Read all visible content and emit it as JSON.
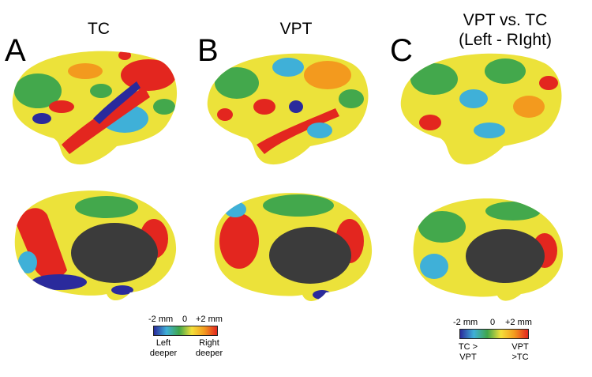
{
  "panels": [
    {
      "letter": "A",
      "title_lines": [
        "TC"
      ]
    },
    {
      "letter": "B",
      "title_lines": [
        "VPT"
      ]
    },
    {
      "letter": "C",
      "title_lines": [
        "VPT vs. TC",
        "(Left - RIght)"
      ]
    }
  ],
  "colorbar_left": {
    "min_label": "-2 mm",
    "mid_label": "0",
    "max_label": "+2 mm",
    "low_caption_lines": [
      "Left",
      "deeper"
    ],
    "high_caption_lines": [
      "Right",
      "deeper"
    ]
  },
  "colorbar_right": {
    "min_label": "-2 mm",
    "mid_label": "0",
    "max_label": "+2 mm",
    "low_caption_lines": [
      "TC >",
      "VPT"
    ],
    "high_caption_lines": [
      "VPT",
      ">TC"
    ]
  },
  "colors": {
    "min": "#2a2a9c",
    "low": "#3fb0d8",
    "zero": "#3fa64a",
    "mid": "#f4e03a",
    "high": "#f39a1e",
    "max": "#e3261f",
    "medial_wall": "#3b3b3b"
  }
}
